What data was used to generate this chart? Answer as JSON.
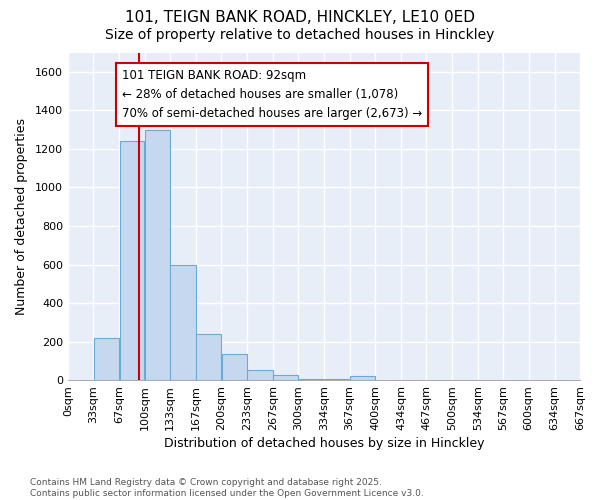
{
  "title_line1": "101, TEIGN BANK ROAD, HINCKLEY, LE10 0ED",
  "title_line2": "Size of property relative to detached houses in Hinckley",
  "xlabel": "Distribution of detached houses by size in Hinckley",
  "ylabel": "Number of detached properties",
  "bar_color": "#c5d8f0",
  "bar_edge_color": "#6aaad4",
  "background_color": "#e8eef8",
  "grid_color": "#ffffff",
  "annotation_text": "101 TEIGN BANK ROAD: 92sqm\n← 28% of detached houses are smaller (1,078)\n70% of semi-detached houses are larger (2,673) →",
  "vline_x": 92,
  "vline_color": "#cc0000",
  "annotation_box_color": "#ffffff",
  "annotation_box_edge": "#cc0000",
  "bin_edges": [
    0,
    33,
    67,
    100,
    133,
    167,
    200,
    233,
    267,
    300,
    334,
    367,
    400,
    434,
    467,
    500,
    534,
    567,
    600,
    634,
    667
  ],
  "bar_heights": [
    3,
    220,
    1240,
    1300,
    600,
    240,
    135,
    55,
    25,
    5,
    5,
    20,
    0,
    0,
    0,
    0,
    0,
    0,
    0,
    0
  ],
  "ylim": [
    0,
    1700
  ],
  "yticks": [
    0,
    200,
    400,
    600,
    800,
    1000,
    1200,
    1400,
    1600
  ],
  "footnote": "Contains HM Land Registry data © Crown copyright and database right 2025.\nContains public sector information licensed under the Open Government Licence v3.0.",
  "title_fontsize": 11,
  "subtitle_fontsize": 10,
  "axis_label_fontsize": 9,
  "tick_fontsize": 8,
  "annotation_fontsize": 8.5,
  "footnote_fontsize": 6.5
}
